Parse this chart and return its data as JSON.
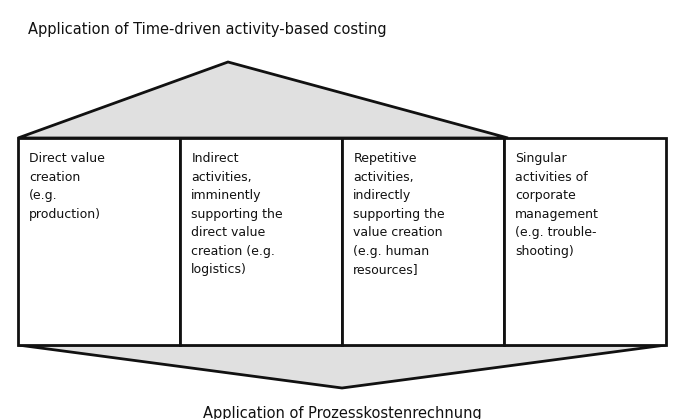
{
  "title_top": "Application of Time-driven activity-based costing",
  "title_bottom": "Application of Prozesskostenrechnung",
  "boxes": [
    "Direct value\ncreation\n(e.g.\nproduction)",
    "Indirect\nactivities,\nimminently\nsupporting the\ndirect value\ncreation (e.g.\nlogistics)",
    "Repetitive\nactivities,\nindirectly\nsupporting the\nvalue creation\n(e.g. human\nresources]",
    "Singular\nactivities of\ncorporate\nmanagement\n(e.g. trouble-\nshooting)"
  ],
  "bg_color": "#ffffff",
  "triangle_fill": "#e0e0e0",
  "triangle_edge": "#111111",
  "box_edge": "#111111",
  "font_size_title": 10.5,
  "font_size_box": 9.0,
  "lw": 2.0
}
